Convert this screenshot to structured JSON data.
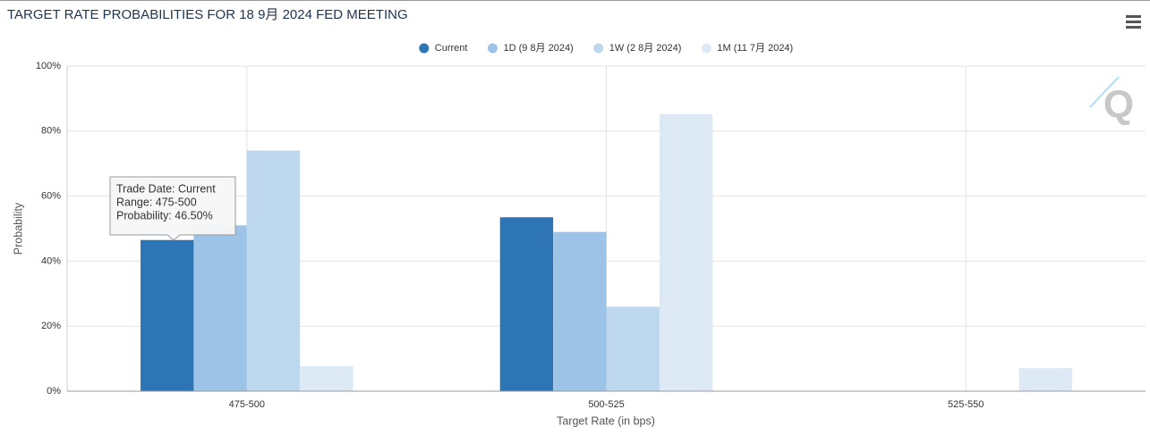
{
  "chart_data": {
    "type": "bar",
    "title": "TARGET RATE PROBABILITIES FOR 18 9月 2024 FED MEETING",
    "x_label": "Target Rate (in bps)",
    "y_label": "Probability",
    "categories": [
      "475-500",
      "500-525",
      "525-550"
    ],
    "series": [
      {
        "name": "Current",
        "color": "#2e75b6",
        "values": [
          46.5,
          53.5,
          0
        ]
      },
      {
        "name": "1D (9 8月 2024)",
        "color": "#9dc3e6",
        "values": [
          51,
          49,
          0
        ]
      },
      {
        "name": "1W (2 8月 2024)",
        "color": "#bdd7ee",
        "values": [
          74,
          26,
          0
        ]
      },
      {
        "name": "1M (11 7月 2024)",
        "color": "#ddeaf6",
        "values": [
          7.7,
          85.2,
          7.1
        ]
      }
    ],
    "ylim": [
      0,
      100
    ],
    "yticks": [
      {
        "value": 0,
        "label": "0%"
      },
      {
        "value": 20,
        "label": "20%"
      },
      {
        "value": 40,
        "label": "40%"
      },
      {
        "value": 60,
        "label": "60%"
      },
      {
        "value": 80,
        "label": "80%"
      },
      {
        "value": 100,
        "label": "100%"
      }
    ],
    "grid": true,
    "tooltip": [
      "Trade Date: Current",
      "Range: 475-500",
      "Probability: 46.50%"
    ]
  }
}
